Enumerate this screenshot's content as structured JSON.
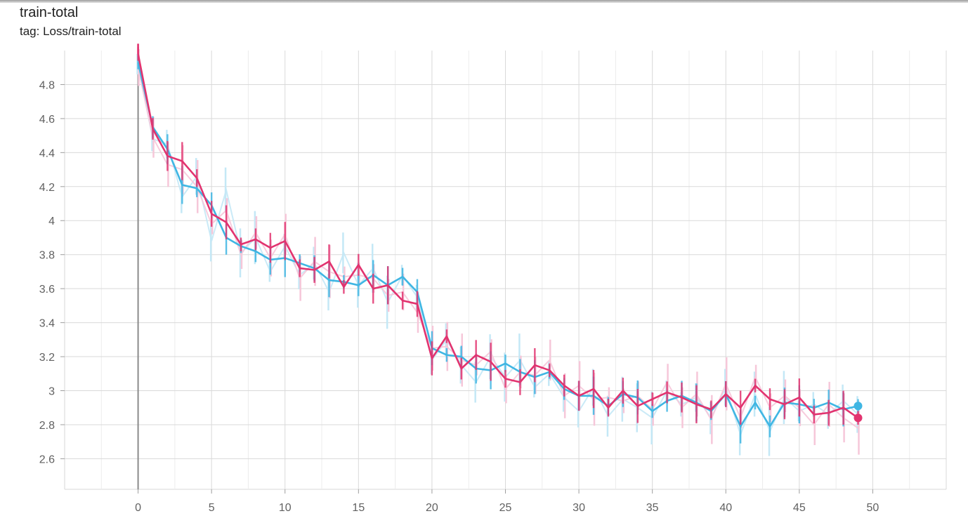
{
  "card": {
    "title": "train-total",
    "subtitle": "tag: Loss/train-total"
  },
  "chart_data": {
    "type": "line",
    "title": "train-total",
    "x_ticks": [
      0,
      5,
      10,
      15,
      20,
      25,
      30,
      35,
      40,
      45,
      50
    ],
    "y_ticks": [
      2.6,
      2.8,
      3.0,
      3.2,
      3.4,
      3.6,
      3.8,
      4.0,
      4.2,
      4.4,
      4.6,
      4.8
    ],
    "y_tick_labels": [
      "2.6",
      "2.8",
      "3",
      "3.2",
      "3.4",
      "3.6",
      "3.8",
      "4",
      "4.2",
      "4.4",
      "4.6",
      "4.8"
    ],
    "xlim": [
      -5,
      55
    ],
    "ylim": [
      2.42,
      5.0
    ],
    "grid": true,
    "step_style": "staircase",
    "x": [
      0,
      1,
      2,
      3,
      4,
      5,
      6,
      7,
      8,
      9,
      10,
      11,
      12,
      13,
      14,
      15,
      16,
      17,
      18,
      19,
      20,
      21,
      22,
      23,
      24,
      25,
      26,
      27,
      28,
      29,
      30,
      31,
      32,
      33,
      34,
      35,
      36,
      37,
      38,
      39,
      40,
      41,
      42,
      43,
      44,
      45,
      46,
      47,
      48,
      49
    ],
    "series": [
      {
        "color": "#3fb6e3",
        "raw_color": "#c4e8f6",
        "values": [
          4.93,
          4.55,
          4.42,
          4.21,
          4.19,
          4.09,
          3.9,
          3.85,
          3.82,
          3.77,
          3.78,
          3.75,
          3.72,
          3.65,
          3.64,
          3.62,
          3.68,
          3.62,
          3.67,
          3.58,
          3.25,
          3.21,
          3.2,
          3.13,
          3.12,
          3.16,
          3.11,
          3.08,
          3.11,
          3.01,
          2.97,
          2.97,
          2.91,
          2.98,
          2.96,
          2.88,
          2.94,
          2.97,
          2.93,
          2.88,
          2.98,
          2.79,
          2.93,
          2.79,
          2.93,
          2.92,
          2.9,
          2.93,
          2.89,
          2.91
        ],
        "raw_values": [
          4.92,
          4.48,
          4.45,
          4.14,
          4.26,
          3.88,
          4.18,
          3.81,
          3.9,
          3.7,
          3.85,
          3.68,
          3.75,
          3.58,
          3.81,
          3.62,
          3.72,
          3.52,
          3.68,
          3.55,
          3.18,
          3.3,
          3.15,
          3.05,
          3.2,
          3.08,
          3.18,
          3.02,
          3.1,
          2.96,
          2.88,
          3.02,
          2.85,
          2.95,
          2.9,
          2.84,
          3.0,
          2.92,
          2.96,
          2.84,
          3.02,
          2.74,
          2.98,
          2.76,
          2.96,
          2.88,
          2.92,
          2.86,
          2.94,
          2.86
        ]
      },
      {
        "color": "#e2336f",
        "raw_color": "#f6c7d9",
        "values": [
          4.98,
          4.54,
          4.38,
          4.35,
          4.25,
          4.04,
          3.99,
          3.86,
          3.89,
          3.84,
          3.88,
          3.72,
          3.71,
          3.76,
          3.61,
          3.74,
          3.6,
          3.62,
          3.53,
          3.51,
          3.19,
          3.32,
          3.13,
          3.21,
          3.17,
          3.07,
          3.05,
          3.15,
          3.12,
          3.03,
          2.97,
          3.01,
          2.9,
          3.0,
          2.91,
          2.95,
          2.99,
          2.96,
          2.92,
          2.89,
          2.98,
          2.9,
          3.03,
          2.95,
          2.92,
          2.96,
          2.86,
          2.87,
          2.9,
          2.84
        ],
        "raw_values": [
          4.9,
          4.49,
          4.33,
          4.3,
          4.2,
          3.98,
          4.06,
          3.8,
          3.93,
          3.78,
          3.92,
          3.66,
          3.76,
          3.7,
          3.67,
          3.68,
          3.66,
          3.56,
          3.58,
          3.46,
          3.25,
          3.26,
          3.18,
          3.15,
          3.23,
          3.01,
          3.11,
          3.09,
          3.18,
          2.97,
          3.03,
          2.95,
          2.96,
          2.94,
          2.97,
          2.89,
          3.05,
          2.9,
          2.98,
          2.83,
          3.04,
          2.84,
          3.08,
          2.9,
          2.97,
          2.9,
          2.8,
          2.92,
          2.84,
          2.78
        ]
      }
    ]
  }
}
